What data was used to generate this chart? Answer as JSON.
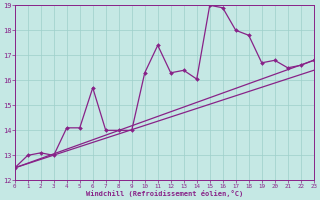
{
  "xlabel": "Windchill (Refroidissement éolien,°C)",
  "bg_color": "#c5e8e4",
  "grid_color": "#9ecfca",
  "line_color": "#882288",
  "xmin": 0,
  "xmax": 23,
  "ymin": 12,
  "ymax": 19,
  "yticks": [
    12,
    13,
    14,
    15,
    16,
    17,
    18,
    19
  ],
  "xticks": [
    0,
    1,
    2,
    3,
    4,
    5,
    6,
    7,
    8,
    9,
    10,
    11,
    12,
    13,
    14,
    15,
    16,
    17,
    18,
    19,
    20,
    21,
    22,
    23
  ],
  "line1_x": [
    0,
    23
  ],
  "line1_y": [
    12.5,
    16.4
  ],
  "line2_x": [
    0,
    23
  ],
  "line2_y": [
    12.5,
    16.8
  ],
  "line3_x": [
    0,
    1,
    2,
    3,
    4,
    5,
    6,
    7,
    8,
    9,
    10,
    11,
    12,
    13,
    14,
    15,
    16,
    17,
    18,
    19,
    20,
    21,
    22,
    23
  ],
  "line3_y": [
    12.5,
    13.0,
    13.1,
    13.0,
    14.1,
    14.1,
    15.7,
    14.0,
    14.0,
    14.0,
    16.3,
    17.4,
    16.3,
    16.4,
    16.05,
    19.0,
    18.9,
    18.0,
    17.8,
    16.7,
    16.8,
    16.5,
    16.6,
    16.8
  ]
}
